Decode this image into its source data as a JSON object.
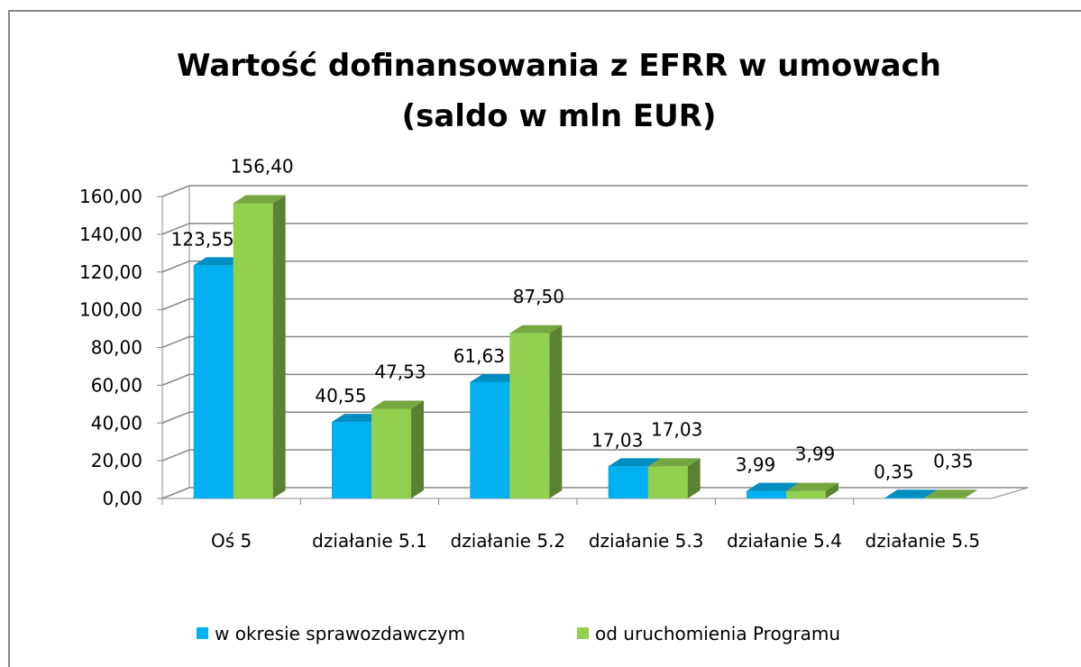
{
  "chart_data": {
    "type": "bar3d",
    "title": "Wartość dofinansowania z EFRR w umowach (saldo w mln EUR)",
    "categories": [
      "Oś 5",
      "działanie 5.1",
      "działanie 5.2",
      "działanie 5.3",
      "działanie 5.4",
      "działanie 5.5"
    ],
    "series": [
      {
        "name": "w okresie sprawozdawczym",
        "color": "#00b0f0",
        "values": [
          123.55,
          40.55,
          61.63,
          17.03,
          3.99,
          0.35
        ],
        "value_labels": [
          "123,55",
          "40,55",
          "61,63",
          "17,03",
          "3,99",
          "0,35"
        ]
      },
      {
        "name": "od uruchomienia Programu",
        "color": "#92d050",
        "values": [
          156.4,
          47.53,
          87.5,
          17.03,
          3.99,
          0.35
        ],
        "value_labels": [
          "156,40",
          "47,53",
          "87,50",
          "17,03",
          "3,99",
          "0,35"
        ]
      }
    ],
    "ylim": [
      0,
      160
    ],
    "yticks": [
      {
        "value": 0,
        "label": "0,00"
      },
      {
        "value": 20,
        "label": "20,00"
      },
      {
        "value": 40,
        "label": "40,00"
      },
      {
        "value": 60,
        "label": "60,00"
      },
      {
        "value": 80,
        "label": "80,00"
      },
      {
        "value": 100,
        "label": "100,00"
      },
      {
        "value": 120,
        "label": "120,00"
      },
      {
        "value": 140,
        "label": "140,00"
      },
      {
        "value": 160,
        "label": "160,00"
      }
    ],
    "grid": true,
    "legend": "bottom"
  }
}
